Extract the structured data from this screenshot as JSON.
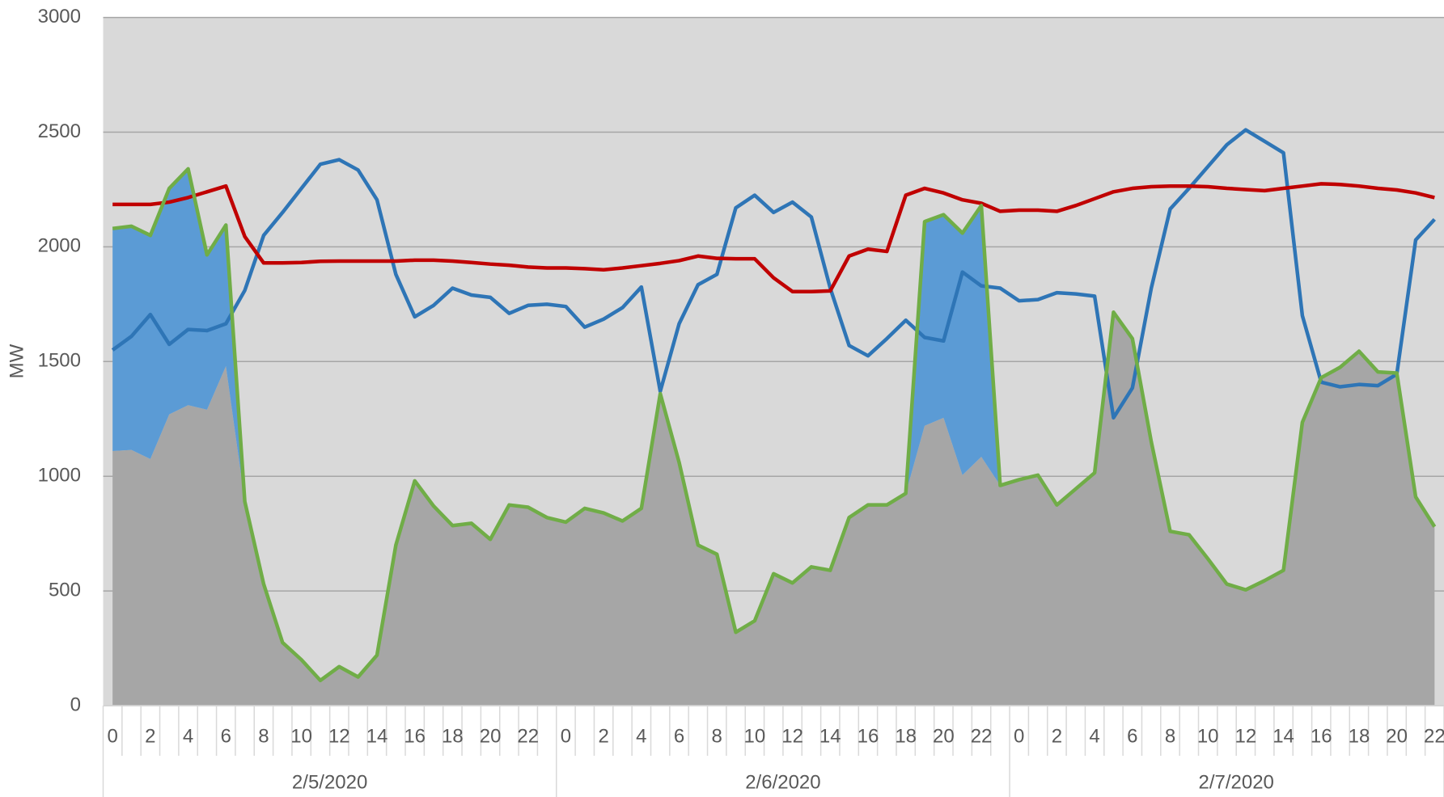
{
  "chart_data": {
    "type": "line",
    "y_label": "MW",
    "ylim": [
      0,
      3000
    ],
    "yticks": [
      0,
      500,
      1000,
      1500,
      2000,
      2500,
      3000
    ],
    "grid": true,
    "categories": [
      "0",
      null,
      "2",
      null,
      "4",
      null,
      "6",
      null,
      "8",
      null,
      "10",
      null,
      "12",
      null,
      "14",
      null,
      "16",
      null,
      "18",
      null,
      "20",
      null,
      "22",
      null,
      "0",
      null,
      "2",
      null,
      "4",
      null,
      "6",
      null,
      "8",
      null,
      "10",
      null,
      "12",
      null,
      "14",
      null,
      "16",
      null,
      "18",
      null,
      "20",
      null,
      "22",
      null,
      "0",
      null,
      "2",
      null,
      "4",
      null,
      "6",
      null,
      "8",
      null,
      "10",
      null,
      "12",
      null,
      "14",
      null,
      "16",
      null,
      "18",
      null,
      "20",
      null,
      "22"
    ],
    "groups": [
      "2/5/2020",
      "2/6/2020",
      "2/7/2020"
    ],
    "series": [
      {
        "type": "area",
        "color": "#a6a6a6",
        "values": [
          1110,
          1115,
          1075,
          1270,
          1310,
          1290,
          1480,
          890,
          530,
          275,
          200,
          110,
          170,
          125,
          220,
          700,
          980,
          870,
          785,
          795,
          725,
          875,
          865,
          820,
          800,
          860,
          840,
          805,
          860,
          1360,
          1060,
          700,
          660,
          320,
          370,
          575,
          535,
          605,
          590,
          820,
          875,
          875,
          925,
          1220,
          1255,
          1005,
          1085,
          960,
          985,
          1005,
          875,
          945,
          1015,
          1715,
          1600,
          1150,
          760,
          745,
          640,
          530,
          505,
          545,
          590,
          1235,
          1430,
          1475,
          1545,
          1455,
          1450,
          910,
          780
        ]
      },
      {
        "type": "area",
        "stacked": true,
        "color": "#5b9bd5",
        "values": [
          970,
          975,
          975,
          985,
          1030,
          675,
          615,
          0,
          0,
          0,
          0,
          0,
          0,
          0,
          0,
          0,
          0,
          0,
          0,
          0,
          0,
          0,
          0,
          0,
          0,
          0,
          0,
          0,
          0,
          0,
          0,
          0,
          0,
          0,
          0,
          0,
          0,
          0,
          0,
          0,
          0,
          0,
          0,
          890,
          885,
          1055,
          1095,
          0,
          0,
          0,
          0,
          0,
          0,
          0,
          0,
          0,
          0,
          0,
          0,
          0,
          0,
          0,
          0,
          0,
          0,
          0,
          0,
          0,
          0,
          0,
          0
        ]
      },
      {
        "type": "line",
        "color": "#2e75b6",
        "values": [
          1550,
          1610,
          1705,
          1575,
          1640,
          1635,
          1665,
          1810,
          2050,
          2150,
          2255,
          2360,
          2380,
          2335,
          2205,
          1880,
          1695,
          1745,
          1820,
          1790,
          1780,
          1710,
          1745,
          1750,
          1740,
          1650,
          1685,
          1735,
          1825,
          1370,
          1665,
          1835,
          1880,
          2170,
          2225,
          2150,
          2195,
          2130,
          1820,
          1570,
          1525,
          1600,
          1680,
          1605,
          1590,
          1890,
          1830,
          1820,
          1765,
          1770,
          1800,
          1795,
          1785,
          1255,
          1385,
          1820,
          2165,
          2255,
          2350,
          2445,
          2510,
          2460,
          2410,
          1700,
          1410,
          1390,
          1400,
          1395,
          1445,
          2030,
          2120
        ]
      },
      {
        "type": "line",
        "color": "#c00000",
        "values": [
          2185,
          2185,
          2185,
          2195,
          2215,
          2240,
          2265,
          2045,
          1930,
          1930,
          1932,
          1937,
          1938,
          1938,
          1938,
          1938,
          1942,
          1942,
          1938,
          1932,
          1925,
          1920,
          1912,
          1908,
          1908,
          1905,
          1900,
          1908,
          1918,
          1928,
          1940,
          1960,
          1950,
          1948,
          1948,
          1865,
          1805,
          1805,
          1808,
          1960,
          1990,
          1980,
          2225,
          2255,
          2235,
          2205,
          2190,
          2155,
          2160,
          2160,
          2155,
          2180,
          2210,
          2240,
          2255,
          2262,
          2265,
          2265,
          2262,
          2255,
          2250,
          2245,
          2255,
          2265,
          2275,
          2272,
          2265,
          2255,
          2248,
          2235,
          2215
        ]
      },
      {
        "type": "line",
        "color": "#70ad47",
        "values": [
          2080,
          2090,
          2050,
          2255,
          2340,
          1965,
          2095,
          890,
          530,
          275,
          200,
          110,
          170,
          125,
          220,
          700,
          980,
          870,
          785,
          795,
          725,
          875,
          865,
          820,
          800,
          860,
          840,
          805,
          860,
          1360,
          1060,
          700,
          660,
          320,
          370,
          575,
          535,
          605,
          590,
          820,
          875,
          875,
          925,
          2110,
          2140,
          2060,
          2180,
          960,
          985,
          1005,
          875,
          945,
          1015,
          1715,
          1600,
          1150,
          760,
          745,
          640,
          530,
          505,
          545,
          590,
          1235,
          1430,
          1475,
          1545,
          1455,
          1450,
          910,
          780
        ]
      }
    ]
  }
}
